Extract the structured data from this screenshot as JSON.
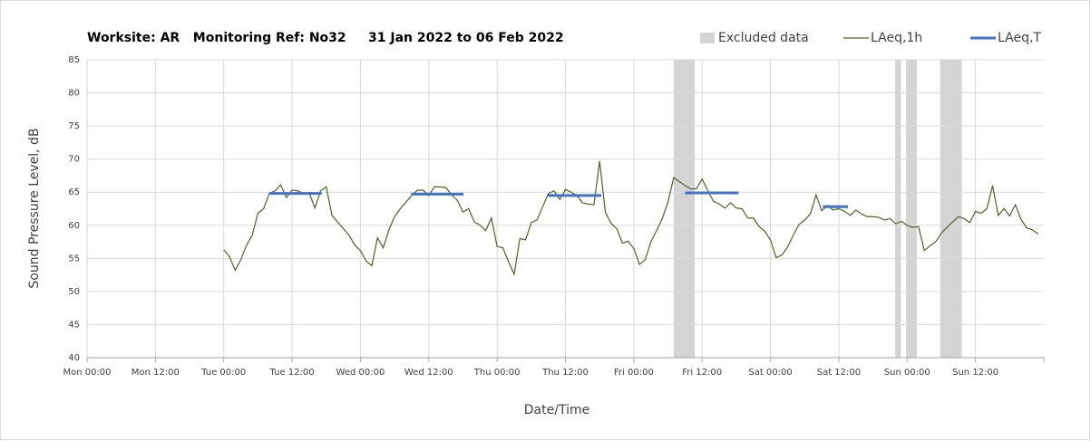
{
  "chart_data": {
    "type": "line",
    "title": "Worksite: AR   Monitoring Ref: No32     31 Jan 2022 to 06 Feb 2022",
    "xlabel": "Date/Time",
    "ylabel": "Sound Pressure Level, dB",
    "xlim": [
      0,
      168
    ],
    "xticks": [
      {
        "value": 0,
        "label": "Mon 00:00"
      },
      {
        "value": 12,
        "label": "Mon 12:00"
      },
      {
        "value": 24,
        "label": "Tue 00:00"
      },
      {
        "value": 36,
        "label": "Tue 12:00"
      },
      {
        "value": 48,
        "label": "Wed 00:00"
      },
      {
        "value": 60,
        "label": "Wed 12:00"
      },
      {
        "value": 72,
        "label": "Thu 00:00"
      },
      {
        "value": 84,
        "label": "Thu 12:00"
      },
      {
        "value": 96,
        "label": "Fri 00:00"
      },
      {
        "value": 108,
        "label": "Fri 12:00"
      },
      {
        "value": 120,
        "label": "Sat 00:00"
      },
      {
        "value": 132,
        "label": "Sat 12:00"
      },
      {
        "value": 144,
        "label": "Sun 00:00"
      },
      {
        "value": 156,
        "label": "Sun 12:00"
      }
    ],
    "ylim": [
      40,
      85
    ],
    "yticks": [
      40,
      45,
      50,
      55,
      60,
      65,
      70,
      75,
      80,
      85
    ],
    "grid": true,
    "legend": "top-right",
    "series": [
      {
        "name": "Excluded data",
        "color": "#d4d4d4",
        "ranges": [
          [
            103,
            106.7
          ],
          [
            141.9,
            142.9
          ],
          [
            143.8,
            145.7
          ],
          [
            149.8,
            153.6
          ]
        ]
      },
      {
        "name": "LAeq,1h",
        "color": "#4f6228",
        "x": [
          24,
          25,
          26,
          27,
          28,
          29,
          30,
          31,
          32,
          33,
          34,
          35,
          36,
          37,
          38,
          39,
          40,
          41,
          42,
          43,
          44,
          45,
          46,
          47,
          48,
          49,
          50,
          51,
          52,
          53,
          54,
          55,
          56,
          57,
          58,
          59,
          60,
          61,
          62,
          63,
          64,
          65,
          66,
          67,
          68,
          69,
          70,
          71,
          72,
          73,
          74,
          75,
          76,
          77,
          78,
          79,
          80,
          81,
          82,
          83,
          84,
          85,
          86,
          87,
          88,
          89,
          90,
          91,
          92,
          93,
          94,
          95,
          96,
          97,
          98,
          99,
          100,
          101,
          102,
          103,
          104,
          105,
          106,
          107,
          108,
          109,
          110,
          111,
          112,
          113,
          114,
          115,
          116,
          117,
          118,
          119,
          120,
          121,
          122,
          123,
          124,
          125,
          126,
          127,
          128,
          129,
          130,
          131,
          132,
          133,
          134,
          135,
          136,
          137,
          138,
          139,
          140,
          141,
          142,
          143,
          144,
          145,
          146,
          147,
          148,
          149,
          150,
          151,
          152,
          153,
          154,
          155,
          156,
          157,
          158,
          159,
          160,
          161,
          162,
          163,
          164,
          165,
          166,
          167
        ],
        "values": [
          56.3,
          55.3,
          53.2,
          54.8,
          57.0,
          58.5,
          61.8,
          62.5,
          64.8,
          65.2,
          66.1,
          64.2,
          65.3,
          65.2,
          64.8,
          64.9,
          62.6,
          65.2,
          65.8,
          61.5,
          60.5,
          59.5,
          58.5,
          57.0,
          56.2,
          54.6,
          53.9,
          58.1,
          56.6,
          59.3,
          61.3,
          62.5,
          63.5,
          64.5,
          65.3,
          65.3,
          64.5,
          65.8,
          65.8,
          65.7,
          64.6,
          63.8,
          62.0,
          62.5,
          60.5,
          60.0,
          59.2,
          61.1,
          56.8,
          56.6,
          54.5,
          52.6,
          58.0,
          57.8,
          60.4,
          60.8,
          62.8,
          64.8,
          65.2,
          63.9,
          65.4,
          65.0,
          64.5,
          63.4,
          63.2,
          63.1,
          69.7,
          62.0,
          60.3,
          59.5,
          57.3,
          57.6,
          56.5,
          54.1,
          54.8,
          57.5,
          59.2,
          61.0,
          63.5,
          67.2,
          66.6,
          66.0,
          65.5,
          65.5,
          67.0,
          65.2,
          63.6,
          63.2,
          62.6,
          63.4,
          62.6,
          62.5,
          61.1,
          61.1,
          59.8,
          59.1,
          57.8,
          55.1,
          55.5,
          56.7,
          58.5,
          60.1,
          60.8,
          61.7,
          64.6,
          62.2,
          63.0,
          62.3,
          62.5,
          62.1,
          61.5,
          62.3,
          61.7,
          61.3,
          61.3,
          61.2,
          60.8,
          61.0,
          60.2,
          60.6,
          60.0,
          59.7,
          59.8,
          56.2,
          56.9,
          57.5,
          58.8,
          59.7,
          60.5,
          61.3,
          61.0,
          60.4,
          62.1,
          61.8,
          62.5,
          66.0,
          61.5,
          62.5,
          61.4,
          63.1,
          60.9,
          59.6,
          59.3,
          58.7
        ]
      },
      {
        "name": "LAeq,T",
        "color": "#4472c4",
        "segments": [
          {
            "start": 32,
            "end": 41.2,
            "value": 64.8
          },
          {
            "start": 56.9,
            "end": 66.1,
            "value": 64.7
          },
          {
            "start": 80.9,
            "end": 90.3,
            "value": 64.5
          },
          {
            "start": 105,
            "end": 114.4,
            "value": 64.9
          },
          {
            "start": 129.2,
            "end": 133.6,
            "value": 62.8
          }
        ]
      }
    ]
  }
}
